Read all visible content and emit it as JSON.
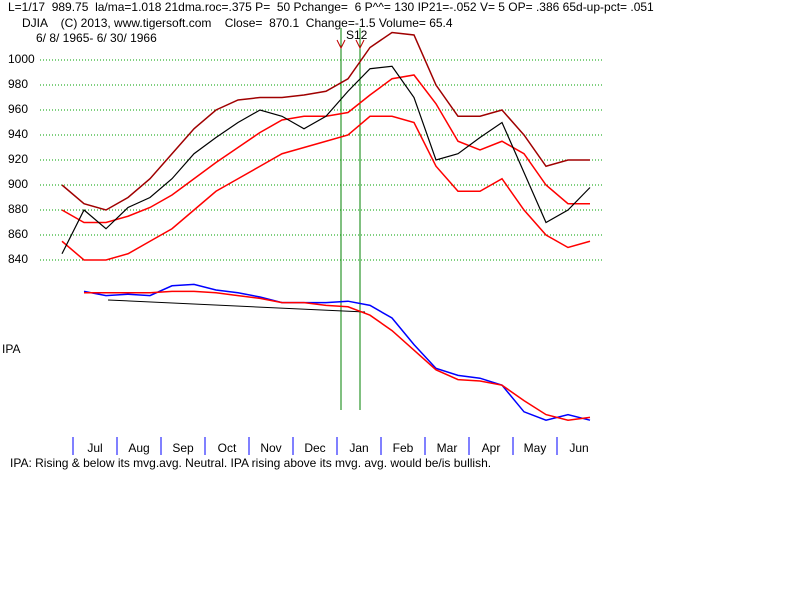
{
  "header": {
    "line1": "L=1/17  989.75  la/ma=1.018 21dma.roc=.375 P=  50 Pchange=  6 P^^= 130 IP21=-.052 V= 5 OP= .386 65d-up-pct= .051",
    "line2": "DJIA    (C) 2013, www.tigersoft.com    Close=  870.1  Change=-1.5 Volume= 65.4",
    "line3": "6/ 8/ 1965- 6/ 30/ 1966"
  },
  "chart_data": [
    {
      "type": "line",
      "annotation": "S12",
      "ylim": [
        840,
        1000
      ],
      "yticks": [
        840,
        860,
        880,
        900,
        920,
        940,
        960,
        980,
        1000
      ],
      "grid": true,
      "series": [
        {
          "color": "#a00000",
          "values": [
            900,
            885,
            880,
            890,
            905,
            925,
            945,
            960,
            968,
            970,
            970,
            972,
            975,
            985,
            1010,
            1022,
            1020,
            980,
            955,
            955,
            960,
            940,
            915,
            920,
            920
          ]
        },
        {
          "color": "#ff0000",
          "values": [
            880,
            870,
            870,
            875,
            882,
            892,
            905,
            918,
            930,
            942,
            952,
            955,
            955,
            958,
            972,
            985,
            988,
            965,
            935,
            928,
            935,
            925,
            900,
            885,
            885
          ]
        },
        {
          "color": "#ff0000",
          "values": [
            855,
            840,
            840,
            845,
            855,
            865,
            880,
            895,
            905,
            915,
            925,
            930,
            935,
            940,
            955,
            955,
            950,
            915,
            895,
            895,
            905,
            880,
            860,
            850,
            855
          ]
        },
        {
          "color": "#000000",
          "values": [
            845,
            880,
            865,
            882,
            890,
            905,
            925,
            938,
            950,
            960,
            955,
            945,
            955,
            975,
            993,
            995,
            970,
            920,
            925,
            938,
            950,
            910,
            870,
            880,
            898
          ]
        }
      ]
    },
    {
      "type": "line",
      "ylabel": "IPA",
      "ylim": [
        0,
        100
      ],
      "categories": [
        null,
        "Jul",
        null,
        "Aug",
        null,
        "Sep",
        null,
        "Oct",
        null,
        "Nov",
        null,
        "Dec",
        null,
        "Jan",
        null,
        "Feb",
        null,
        "Mar",
        null,
        "Apr",
        null,
        "May",
        null,
        "Jun",
        null
      ],
      "series": [
        {
          "color": "#0000ff",
          "values": [
            null,
            99,
            96,
            97,
            96,
            103,
            104,
            100,
            98,
            95,
            91,
            91,
            91,
            92,
            89,
            80,
            61,
            44,
            39,
            37,
            32,
            13,
            7,
            11,
            7
          ]
        },
        {
          "color": "#ff0000",
          "values": [
            null,
            98,
            98,
            98,
            98,
            99,
            99,
            98,
            96,
            94,
            91,
            91,
            89,
            88,
            82,
            71,
            57,
            43,
            36,
            35,
            32,
            21,
            11,
            7,
            9
          ]
        }
      ]
    }
  ],
  "caption": "IPA: Rising & below its mvg.avg. Neutral. IPA rising above its mvg. avg. would be/is bullish."
}
